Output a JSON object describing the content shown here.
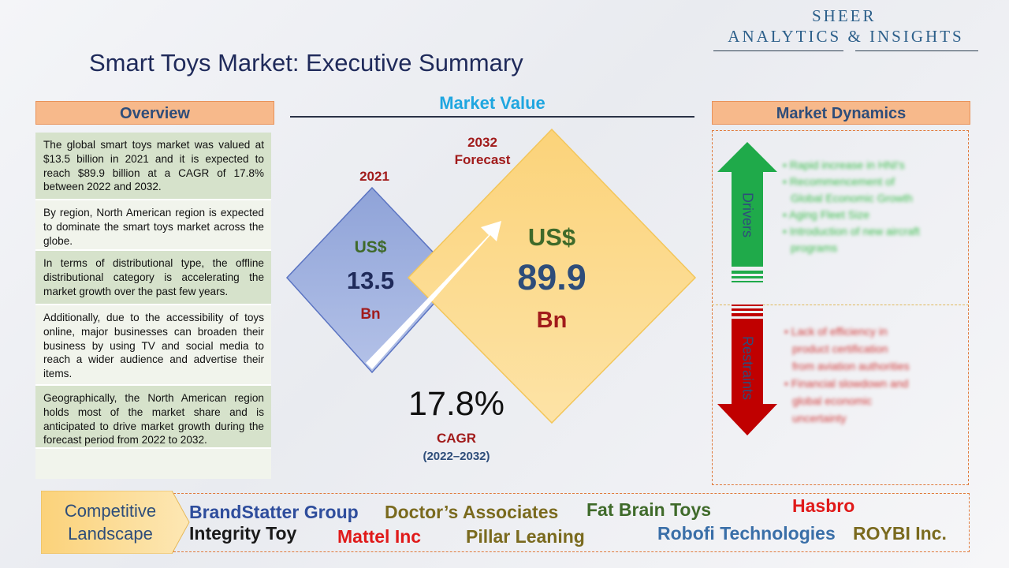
{
  "logo": {
    "line1": "SHEER",
    "line2": "ANALYTICS & INSIGHTS"
  },
  "title": "Smart Toys Market: Executive Summary",
  "overview": {
    "header": "Overview",
    "items": [
      "The global smart toys market was valued at $13.5 billion in 2021 and it is expected to reach $89.9 billion at a CAGR of 17.8% between 2022 and 2032.",
      "By region, North American region is expected to dominate the smart toys market across the globe.",
      "In terms of distributional type, the offline distributional category is accelerating the market growth over the past few years.",
      "Additionally, due to the accessibility of toys online, major businesses can broaden their business by using TV and social media to reach a wider audience and advertise their items.",
      "Geographically, the North American region holds most of the market share and is anticipated to drive market growth during the forecast period from 2022 to 2032."
    ]
  },
  "market_value": {
    "header": "Market Value",
    "y2021": {
      "label": "2021",
      "currency": "US$",
      "value": "13.5",
      "unit": "Bn"
    },
    "y2032": {
      "label_line1": "2032",
      "label_line2": "Forecast",
      "currency": "US$",
      "value": "89.9",
      "unit": "Bn"
    },
    "cagr": {
      "value": "17.8%",
      "label": "CAGR",
      "period": "(2022–2032)"
    }
  },
  "dynamics": {
    "header": "Market Dynamics",
    "drivers_label": "Drivers",
    "restraints_label": "Restraints",
    "drivers": [
      "• Rapid increase in HNI's",
      "• Recommencement of",
      "  Global Economic Growth",
      "• Aging Fleet Size",
      "• Introduction of new aircraft",
      "  programs"
    ],
    "restraints": [
      "• Lack of efficiency in",
      "  product certification",
      "  from aviation authorities",
      "• Financial slowdown and",
      "  global economic",
      "  uncertainty"
    ],
    "colors": {
      "drivers": "#1faa4a",
      "restraints": "#c00000"
    }
  },
  "competitive": {
    "label_line1": "Competitive",
    "label_line2": "Landscape",
    "companies": [
      {
        "name": "BrandStatter Group",
        "color": "#2e4d9c"
      },
      {
        "name": "Doctor’s Associates",
        "color": "#7a6a1e"
      },
      {
        "name": "Fat Brain Toys",
        "color": "#3f6a2a"
      },
      {
        "name": "Hasbro",
        "color": "#e01a1a"
      },
      {
        "name": "Integrity Toy",
        "color": "#1a1a1a"
      },
      {
        "name": "Mattel Inc",
        "color": "#e01a1a"
      },
      {
        "name": "Pillar Leaning",
        "color": "#7a6a1e"
      },
      {
        "name": "Robofi Technologies",
        "color": "#3a6fa8"
      },
      {
        "name": "ROYBI Inc.",
        "color": "#7a6a1e"
      }
    ]
  }
}
